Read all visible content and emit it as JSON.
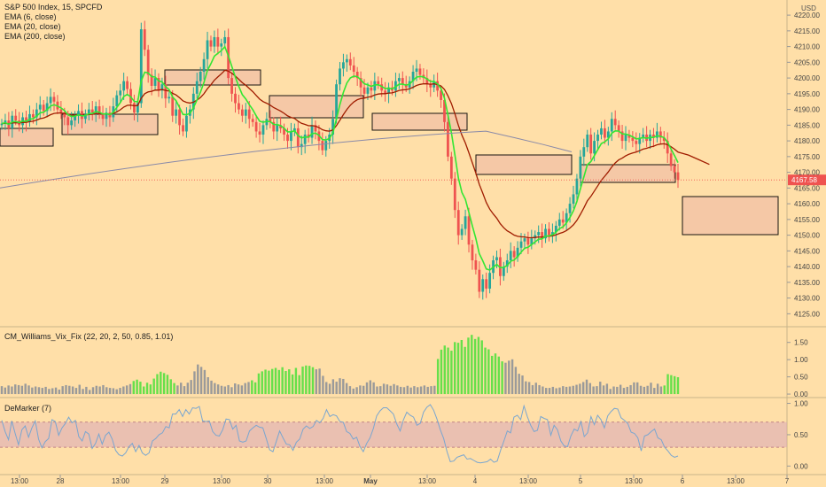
{
  "legend": {
    "title": "S&P 500 Index, 15, SPCFD",
    "ema6": "EMA (6, close)",
    "ema20": "EMA (20, close)",
    "ema200": "EMA (200, close)",
    "vix": "CM_Williams_Vix_Fix (22, 20, 2, 50, 0.85, 1.01)",
    "demarker": "DeMarker (7)"
  },
  "currency": "USD",
  "colors": {
    "background": "#ffdfa8",
    "candle_up": "#26a69a",
    "candle_down": "#ef5350",
    "ema6": "#33e633",
    "ema20": "#a01c00",
    "ema200": "#8a8aa8",
    "vix_high": "#66e04a",
    "vix_normal": "#9a9a9a",
    "demarker_line": "#7aa6d0",
    "demarker_band": "#d9a6b8",
    "zone_fill": "#f5c6a6",
    "last_price_tag": "#ef5350"
  },
  "chart_data": [
    {
      "type": "candlestick",
      "panel": "price",
      "y_ticks": [
        4125,
        4130,
        4135,
        4140,
        4145,
        4150,
        4155,
        4160,
        4165,
        4170,
        4175,
        4180,
        4185,
        4190,
        4195,
        4200,
        4205,
        4210,
        4215,
        4220
      ],
      "y_range": [
        4122,
        4222
      ],
      "last_price": "4167.58",
      "x_ticks": [
        "13:00",
        "28",
        "13:00",
        "29",
        "13:00",
        "30",
        "13:00",
        "May",
        "13:00",
        "4",
        "13:00",
        "5",
        "13:00",
        "6",
        "13:00",
        "7"
      ],
      "candles_close": [
        4185.5,
        4186.5,
        4184.0,
        4188.0,
        4186.5,
        4185.0,
        4187.5,
        4186.0,
        4188.5,
        4187.5,
        4190.0,
        4191.5,
        4189.5,
        4192.0,
        4194.0,
        4192.5,
        4190.0,
        4189.0,
        4187.5,
        4185.0,
        4186.5,
        4188.0,
        4189.5,
        4187.0,
        4188.5,
        4190.0,
        4189.0,
        4191.0,
        4188.5,
        4187.0,
        4189.0,
        4187.5,
        4191.0,
        4194.5,
        4196.0,
        4199.0,
        4196.5,
        4192.0,
        4189.0,
        4192.0,
        4215.5,
        4209.0,
        4201.0,
        4197.5,
        4200.0,
        4196.0,
        4198.0,
        4193.5,
        4194.0,
        4188.0,
        4190.0,
        4185.0,
        4183.0,
        4188.0,
        4190.0,
        4195.0,
        4199.0,
        4202.0,
        4206.0,
        4212.0,
        4210.0,
        4213.0,
        4210.0,
        4211.0,
        4213.0,
        4200.0,
        4195.0,
        4192.0,
        4190.0,
        4188.0,
        4190.0,
        4187.0,
        4186.0,
        4183.0,
        4182.0,
        4185.0,
        4187.0,
        4186.0,
        4183.0,
        4185.0,
        4184.0,
        4182.0,
        4180.0,
        4183.0,
        4184.0,
        4178.0,
        4179.0,
        4182.0,
        4181.0,
        4185.0,
        4183.0,
        4180.0,
        4177.0,
        4180.0,
        4182.0,
        4187.0,
        4198.0,
        4203.0,
        4205.0,
        4206.0,
        4204.0,
        4202.0,
        4200.0,
        4197.0,
        4195.0,
        4197.0,
        4196.0,
        4199.0,
        4198.0,
        4196.0,
        4195.0,
        4197.0,
        4196.0,
        4199.0,
        4200.0,
        4198.0,
        4197.0,
        4199.0,
        4202.0,
        4203.0,
        4201.0,
        4200.0,
        4198.0,
        4197.0,
        4199.0,
        4196.0,
        4193.0,
        4186.0,
        4175.0,
        4168.0,
        4158.0,
        4150.0,
        4152.0,
        4156.0,
        4147.0,
        4142.0,
        4139.0,
        4132.0,
        4136.0,
        4133.0,
        4138.0,
        4142.0,
        4143.0,
        4137.0,
        4140.0,
        4142.0,
        4145.0,
        4143.0,
        4146.0,
        4148.0,
        4149.0,
        4147.0,
        4149.0,
        4150.0,
        4151.0,
        4149.0,
        4152.0,
        4150.0,
        4151.0,
        4153.0,
        4155.0,
        4154.0,
        4157.0,
        4160.0,
        4163.0,
        4168.0,
        4175.0,
        4178.0,
        4182.0,
        4176.0,
        4180.0,
        4182.0,
        4184.0,
        4181.0,
        4183.0,
        4187.0,
        4185.0,
        4183.0,
        4180.0,
        4182.0,
        4181.0,
        4180.0,
        4179.0,
        4181.0,
        4182.0,
        4180.0,
        4182.0,
        4181.0,
        4183.0,
        4181.0,
        4180.0,
        4176.0,
        4172.0,
        4170.0,
        4167.58
      ],
      "ema200_end": 4184.0
    },
    {
      "type": "bar",
      "panel": "CM_Williams_Vix_Fix",
      "y_ticks": [
        0.0,
        0.5,
        1.0,
        1.5
      ],
      "y_range": [
        -0.05,
        1.75
      ],
      "values": [
        0.23,
        0.19,
        0.25,
        0.22,
        0.28,
        0.26,
        0.24,
        0.3,
        0.25,
        0.19,
        0.22,
        0.2,
        0.18,
        0.21,
        0.15,
        0.17,
        0.19,
        0.13,
        0.23,
        0.26,
        0.24,
        0.22,
        0.18,
        0.27,
        0.15,
        0.21,
        0.12,
        0.2,
        0.24,
        0.22,
        0.26,
        0.2,
        0.18,
        0.17,
        0.14,
        0.18,
        0.22,
        0.25,
        0.29,
        0.38,
        0.42,
        0.36,
        0.22,
        0.33,
        0.28,
        0.45,
        0.58,
        0.65,
        0.61,
        0.56,
        0.43,
        0.32,
        0.25,
        0.33,
        0.23,
        0.33,
        0.41,
        0.66,
        0.86,
        0.79,
        0.7,
        0.49,
        0.39,
        0.32,
        0.28,
        0.24,
        0.22,
        0.26,
        0.2,
        0.31,
        0.28,
        0.25,
        0.32,
        0.35,
        0.4,
        0.34,
        0.6,
        0.66,
        0.71,
        0.68,
        0.73,
        0.76,
        0.7,
        0.78,
        0.67,
        0.72,
        0.57,
        0.76,
        0.55,
        0.8,
        0.83,
        0.82,
        0.78,
        0.72,
        0.74,
        0.53,
        0.35,
        0.3,
        0.43,
        0.36,
        0.46,
        0.44,
        0.32,
        0.23,
        0.16,
        0.2,
        0.25,
        0.24,
        0.34,
        0.4,
        0.34,
        0.22,
        0.23,
        0.3,
        0.28,
        0.24,
        0.29,
        0.25,
        0.21,
        0.2,
        0.24,
        0.19,
        0.23,
        0.2,
        0.22,
        0.25,
        0.21,
        0.23,
        0.24,
        1.02,
        1.29,
        1.41,
        1.35,
        1.26,
        1.51,
        1.49,
        1.57,
        1.37,
        1.64,
        1.72,
        1.6,
        1.66,
        1.56,
        1.35,
        1.3,
        1.11,
        1.18,
        1.09,
        0.95,
        0.91,
        0.97,
        1.01,
        0.79,
        0.59,
        0.54,
        0.37,
        0.35,
        0.26,
        0.33,
        0.26,
        0.22,
        0.18,
        0.18,
        0.21,
        0.17,
        0.19,
        0.23,
        0.21,
        0.22,
        0.24,
        0.27,
        0.3,
        0.35,
        0.42,
        0.32,
        0.22,
        0.23,
        0.36,
        0.25,
        0.3,
        0.15,
        0.22,
        0.21,
        0.27,
        0.18,
        0.21,
        0.26,
        0.34,
        0.34,
        0.24,
        0.21,
        0.24,
        0.33,
        0.18,
        0.3,
        0.22,
        0.25,
        0.58,
        0.55,
        0.52,
        0.49
      ],
      "highlight_ranges": [
        [
          39,
          51
        ],
        [
          74,
          92
        ],
        [
          129,
          148
        ],
        [
          196,
          200
        ]
      ]
    },
    {
      "type": "line",
      "panel": "DeMarker",
      "y_ticks": [
        0.0,
        0.5,
        1.0
      ],
      "band": [
        0.3,
        0.7
      ],
      "y_range": [
        -0.08,
        1.05
      ],
      "values": [
        0.73,
        0.55,
        0.42,
        0.72,
        0.52,
        0.34,
        0.58,
        0.64,
        0.46,
        0.61,
        0.72,
        0.43,
        0.29,
        0.39,
        0.44,
        0.74,
        0.71,
        0.49,
        0.61,
        0.68,
        0.78,
        0.69,
        0.73,
        0.47,
        0.4,
        0.55,
        0.51,
        0.28,
        0.36,
        0.51,
        0.35,
        0.49,
        0.54,
        0.43,
        0.25,
        0.18,
        0.16,
        0.21,
        0.31,
        0.36,
        0.23,
        0.33,
        0.21,
        0.17,
        0.21,
        0.4,
        0.44,
        0.5,
        0.53,
        0.63,
        0.61,
        0.83,
        0.83,
        0.9,
        0.79,
        0.9,
        0.83,
        0.93,
        0.92,
        0.95,
        0.72,
        0.71,
        0.72,
        0.55,
        0.49,
        0.48,
        0.58,
        0.75,
        0.74,
        0.59,
        0.65,
        0.4,
        0.38,
        0.4,
        0.56,
        0.61,
        0.65,
        0.62,
        0.61,
        0.44,
        0.26,
        0.23,
        0.39,
        0.56,
        0.45,
        0.35,
        0.34,
        0.25,
        0.38,
        0.43,
        0.59,
        0.64,
        0.6,
        0.63,
        0.73,
        0.69,
        0.76,
        0.9,
        0.79,
        0.82,
        0.8,
        0.71,
        0.7,
        0.55,
        0.52,
        0.43,
        0.46,
        0.31,
        0.23,
        0.36,
        0.45,
        0.6,
        0.8,
        0.88,
        0.93,
        0.93,
        0.88,
        0.83,
        0.67,
        0.56,
        0.74,
        0.86,
        0.81,
        0.78,
        0.65,
        0.68,
        0.86,
        0.94,
        0.98,
        0.89,
        0.75,
        0.58,
        0.44,
        0.23,
        0.07,
        0.08,
        0.14,
        0.16,
        0.18,
        0.11,
        0.12,
        0.09,
        0.06,
        0.05,
        0.06,
        0.07,
        0.11,
        0.06,
        0.08,
        0.25,
        0.4,
        0.56,
        0.53,
        0.78,
        0.81,
        0.74,
        0.96,
        0.79,
        0.65,
        0.55,
        0.57,
        0.79,
        0.76,
        0.74,
        0.49,
        0.65,
        0.58,
        0.4,
        0.32,
        0.31,
        0.48,
        0.59,
        0.56,
        0.71,
        0.47,
        0.53,
        0.79,
        0.66,
        0.81,
        0.74,
        0.61,
        0.8,
        0.87,
        0.92,
        0.91,
        0.77,
        0.73,
        0.68,
        0.54,
        0.52,
        0.45,
        0.24,
        0.48,
        0.5,
        0.55,
        0.59,
        0.45,
        0.42,
        0.3,
        0.24,
        0.17,
        0.14,
        0.16
      ]
    }
  ]
}
